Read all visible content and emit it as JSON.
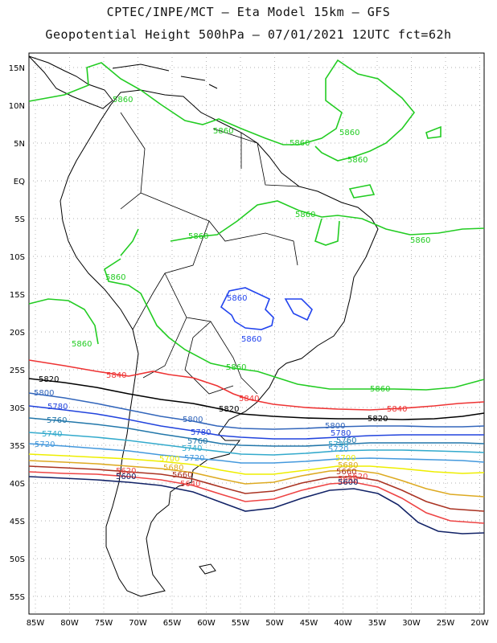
{
  "header": {
    "line1": "CPTEC/INPE/MCT –  Eta Model 15km – GFS",
    "line2": "Geopotential Height 500hPa – 07/01/2021 12UTC fct=62h"
  },
  "axes": {
    "lat_ticks": [
      "15N",
      "10N",
      "5N",
      "EQ",
      "5S",
      "10S",
      "15S",
      "20S",
      "25S",
      "30S",
      "35S",
      "40S",
      "45S",
      "50S",
      "55S"
    ],
    "lon_ticks": [
      "85W",
      "80W",
      "75W",
      "70W",
      "65W",
      "60W",
      "55W",
      "50W",
      "45W",
      "40W",
      "35W",
      "30W",
      "25W",
      "20W"
    ]
  },
  "colors": {
    "c5860": "#22cc22",
    "c5860_high": "#2244ee",
    "c5840": "#ee3333",
    "c5820": "#000000",
    "c5800": "#3366bb",
    "c5780": "#2244dd",
    "c5760": "#2277aa",
    "c5740": "#33aacc",
    "c5720": "#4499dd",
    "c5700": "#eeee00",
    "c5680": "#ddaa22",
    "c5660": "#aa3322",
    "c5640": "#ee4444",
    "c5620": "#112266"
  },
  "contour_labels": {
    "l5860": "5860",
    "l5840": "5840",
    "l5820": "5820",
    "l5800": "5800",
    "l5780": "5780",
    "l5760": "5760",
    "l5740": "5740",
    "l5720": "5720",
    "l5700": "5700",
    "l5680": "5680",
    "l5660": "5660",
    "l5640": "5640",
    "l5620": "5620",
    "l5600": "5600"
  }
}
